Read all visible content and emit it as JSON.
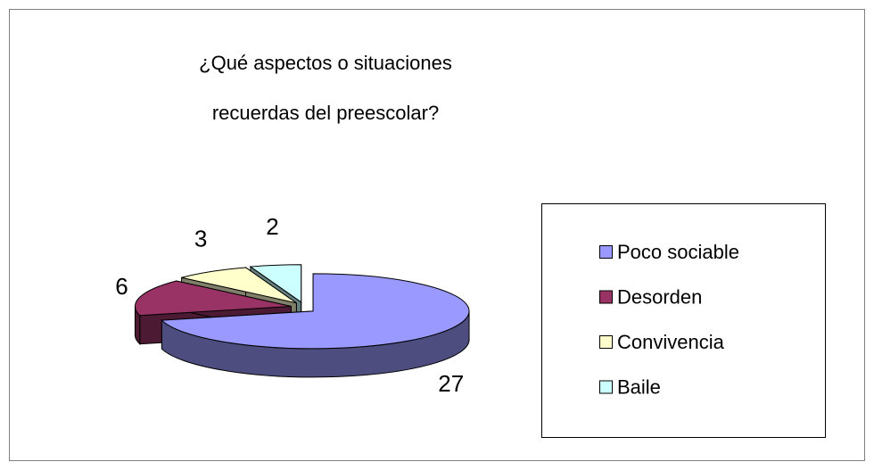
{
  "chart_data": {
    "type": "pie3d",
    "title": [
      "¿Qué aspectos o situaciones",
      "recuerdas del preescolar?"
    ],
    "categories": [
      "Poco sociable",
      "Desorden",
      "Convivencia",
      "Baile"
    ],
    "values": [
      27,
      6,
      3,
      2
    ],
    "colors": [
      "#9999ff",
      "#993366",
      "#ffffcc",
      "#ccffff"
    ],
    "side_colors": [
      "#4d4d80",
      "#4d1a33",
      "#80806a",
      "#668080"
    ],
    "legend": "right"
  }
}
